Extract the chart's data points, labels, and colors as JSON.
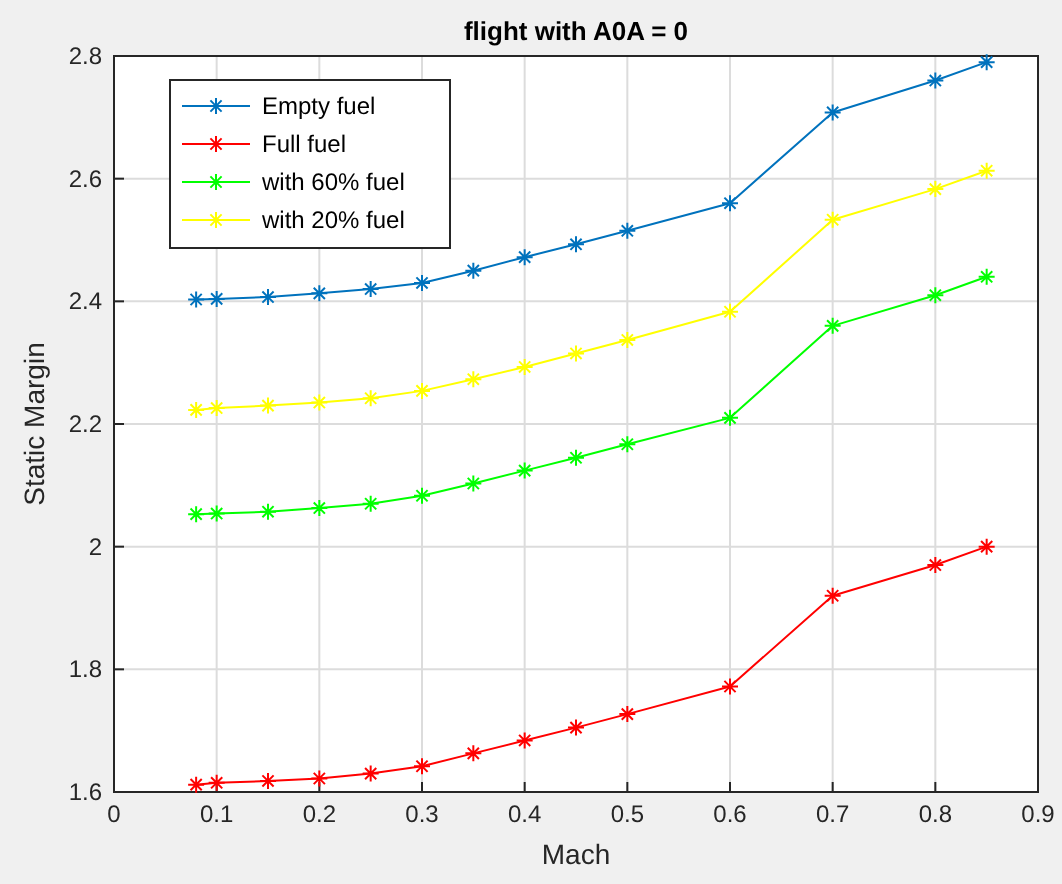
{
  "chart_data": {
    "type": "line",
    "title": "flight with A0A = 0",
    "xlabel": "Mach",
    "ylabel": "Static Margin",
    "x": [
      0.08,
      0.1,
      0.15,
      0.2,
      0.25,
      0.3,
      0.35,
      0.4,
      0.45,
      0.5,
      0.6,
      0.7,
      0.8,
      0.85
    ],
    "series": [
      {
        "name": "Empty fuel",
        "color": "#0072bd",
        "values": [
          2.403,
          2.404,
          2.407,
          2.413,
          2.42,
          2.43,
          2.45,
          2.472,
          2.493,
          2.515,
          2.56,
          2.708,
          2.76,
          2.79
        ]
      },
      {
        "name": "Full fuel",
        "color": "#ff0000",
        "values": [
          1.612,
          1.615,
          1.618,
          1.622,
          1.63,
          1.642,
          1.663,
          1.684,
          1.705,
          1.727,
          1.772,
          1.92,
          1.97,
          2.0
        ]
      },
      {
        "name": "with 60% fuel",
        "color": "#00ff00",
        "values": [
          2.053,
          2.054,
          2.057,
          2.063,
          2.07,
          2.083,
          2.103,
          2.124,
          2.145,
          2.167,
          2.21,
          2.36,
          2.41,
          2.44
        ]
      },
      {
        "name": "with 20% fuel",
        "color": "#ffff00",
        "values": [
          2.223,
          2.226,
          2.23,
          2.235,
          2.242,
          2.254,
          2.273,
          2.293,
          2.315,
          2.337,
          2.383,
          2.533,
          2.583,
          2.613
        ]
      }
    ],
    "xlim": [
      0,
      0.9
    ],
    "xticks": [
      0,
      0.1,
      0.2,
      0.3,
      0.4,
      0.5,
      0.6,
      0.7,
      0.8,
      0.9
    ],
    "ylim": [
      1.6,
      2.8
    ],
    "yticks": [
      1.6,
      1.8,
      2,
      2.2,
      2.4,
      2.6,
      2.8
    ],
    "grid": true,
    "legend": "top left",
    "marker": "cross",
    "line_style": "solid"
  }
}
